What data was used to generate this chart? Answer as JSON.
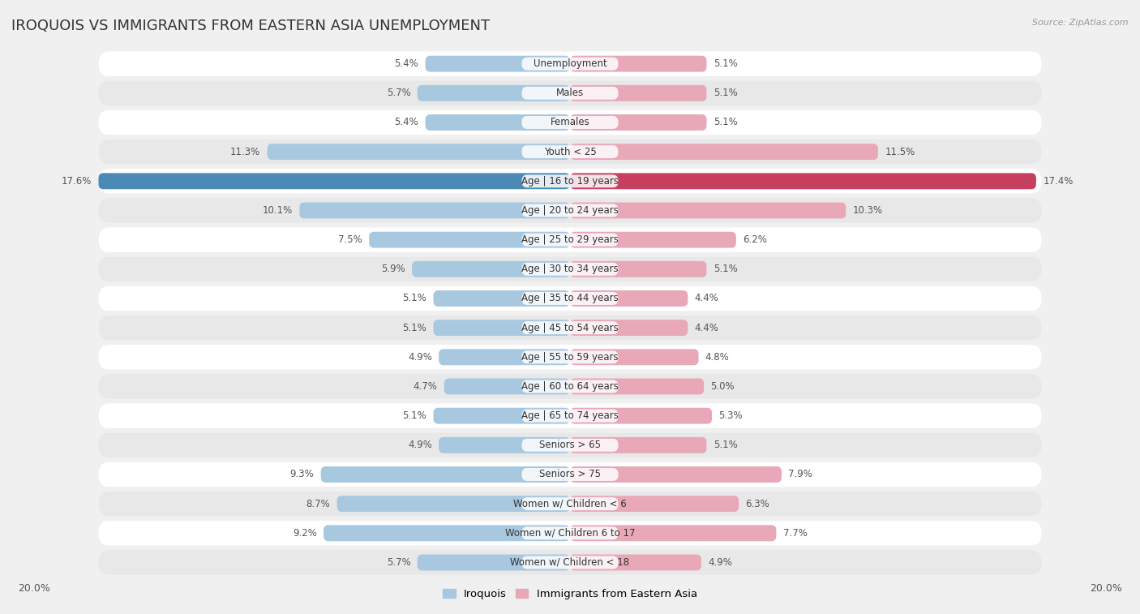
{
  "title": "IROQUOIS VS IMMIGRANTS FROM EASTERN ASIA UNEMPLOYMENT",
  "source": "Source: ZipAtlas.com",
  "categories": [
    "Unemployment",
    "Males",
    "Females",
    "Youth < 25",
    "Age | 16 to 19 years",
    "Age | 20 to 24 years",
    "Age | 25 to 29 years",
    "Age | 30 to 34 years",
    "Age | 35 to 44 years",
    "Age | 45 to 54 years",
    "Age | 55 to 59 years",
    "Age | 60 to 64 years",
    "Age | 65 to 74 years",
    "Seniors > 65",
    "Seniors > 75",
    "Women w/ Children < 6",
    "Women w/ Children 6 to 17",
    "Women w/ Children < 18"
  ],
  "iroquois": [
    5.4,
    5.7,
    5.4,
    11.3,
    17.6,
    10.1,
    7.5,
    5.9,
    5.1,
    5.1,
    4.9,
    4.7,
    5.1,
    4.9,
    9.3,
    8.7,
    9.2,
    5.7
  ],
  "eastern_asia": [
    5.1,
    5.1,
    5.1,
    11.5,
    17.4,
    10.3,
    6.2,
    5.1,
    4.4,
    4.4,
    4.8,
    5.0,
    5.3,
    5.1,
    7.9,
    6.3,
    7.7,
    4.9
  ],
  "color_iroquois": "#a8c8e0",
  "color_eastern_asia": "#e8a8b8",
  "color_iroquois_strong": "#5b9abf",
  "color_eastern_asia_strong": "#d96080",
  "bar_height": 0.55,
  "bg_color": "#f0f0f0",
  "row_colors_alt": [
    "#ffffff",
    "#e8e8e8"
  ],
  "value_color": "#555555",
  "xlim": 20.0,
  "legend_label_iroquois": "Iroquois",
  "legend_label_eastern_asia": "Immigrants from Eastern Asia",
  "label_bg": "#f5f5f5",
  "highlight_row": 4,
  "color_iroquois_highlight": "#4a8ab5",
  "color_eastern_asia_highlight": "#c84060"
}
